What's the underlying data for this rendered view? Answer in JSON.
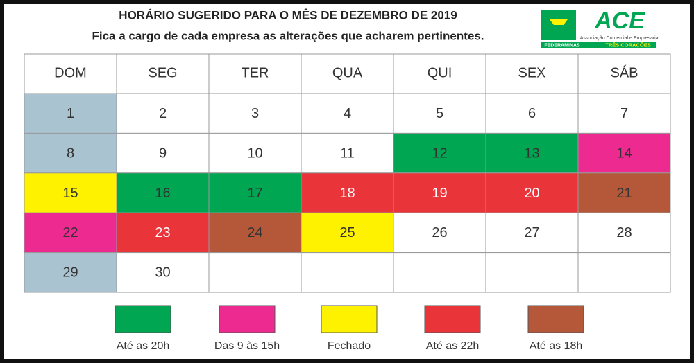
{
  "header": {
    "title": "HORÁRIO SUGERIDO PARA O MÊS DE DEZEMBRO DE 2019",
    "subtitle": "Fica a cargo de cada empresa as alterações que acharem pertinentes."
  },
  "logo": {
    "name": "ACE",
    "tagline": "Associação Comercial e Empresarial",
    "federation": "FEDERAMINAS",
    "city": "TRÊS CORAÇÕES"
  },
  "calendar": {
    "weekdays": [
      "DOM",
      "SEG",
      "TER",
      "QUA",
      "QUI",
      "SEX",
      "SÁB"
    ],
    "weeks": [
      [
        {
          "day": "1",
          "color": "#a9c3d1"
        },
        {
          "day": "2",
          "color": "#ffffff"
        },
        {
          "day": "3",
          "color": "#ffffff"
        },
        {
          "day": "4",
          "color": "#ffffff"
        },
        {
          "day": "5",
          "color": "#ffffff"
        },
        {
          "day": "6",
          "color": "#ffffff"
        },
        {
          "day": "7",
          "color": "#ffffff"
        }
      ],
      [
        {
          "day": "8",
          "color": "#a9c3d1"
        },
        {
          "day": "9",
          "color": "#ffffff"
        },
        {
          "day": "10",
          "color": "#ffffff"
        },
        {
          "day": "11",
          "color": "#ffffff"
        },
        {
          "day": "12",
          "color": "#00a651"
        },
        {
          "day": "13",
          "color": "#00a651"
        },
        {
          "day": "14",
          "color": "#ec2a90"
        }
      ],
      [
        {
          "day": "15",
          "color": "#fff200"
        },
        {
          "day": "16",
          "color": "#00a651"
        },
        {
          "day": "17",
          "color": "#00a651"
        },
        {
          "day": "18",
          "color": "#e9343a"
        },
        {
          "day": "19",
          "color": "#e9343a"
        },
        {
          "day": "20",
          "color": "#e9343a"
        },
        {
          "day": "21",
          "color": "#b5583a"
        }
      ],
      [
        {
          "day": "22",
          "color": "#ec2a90"
        },
        {
          "day": "23",
          "color": "#e9343a"
        },
        {
          "day": "24",
          "color": "#b5583a"
        },
        {
          "day": "25",
          "color": "#fff200"
        },
        {
          "day": "26",
          "color": "#ffffff"
        },
        {
          "day": "27",
          "color": "#ffffff"
        },
        {
          "day": "28",
          "color": "#ffffff"
        }
      ],
      [
        {
          "day": "29",
          "color": "#a9c3d1"
        },
        {
          "day": "30",
          "color": "#ffffff"
        },
        null,
        null,
        null,
        null,
        null
      ]
    ]
  },
  "legend": [
    {
      "label": "Até as 20h",
      "color": "#00a651"
    },
    {
      "label": "Das 9 às 15h",
      "color": "#ec2a90"
    },
    {
      "label": "Fechado",
      "color": "#fff200"
    },
    {
      "label": "Até as 22h",
      "color": "#e9343a"
    },
    {
      "label": "Até as 18h",
      "color": "#b5583a"
    }
  ]
}
